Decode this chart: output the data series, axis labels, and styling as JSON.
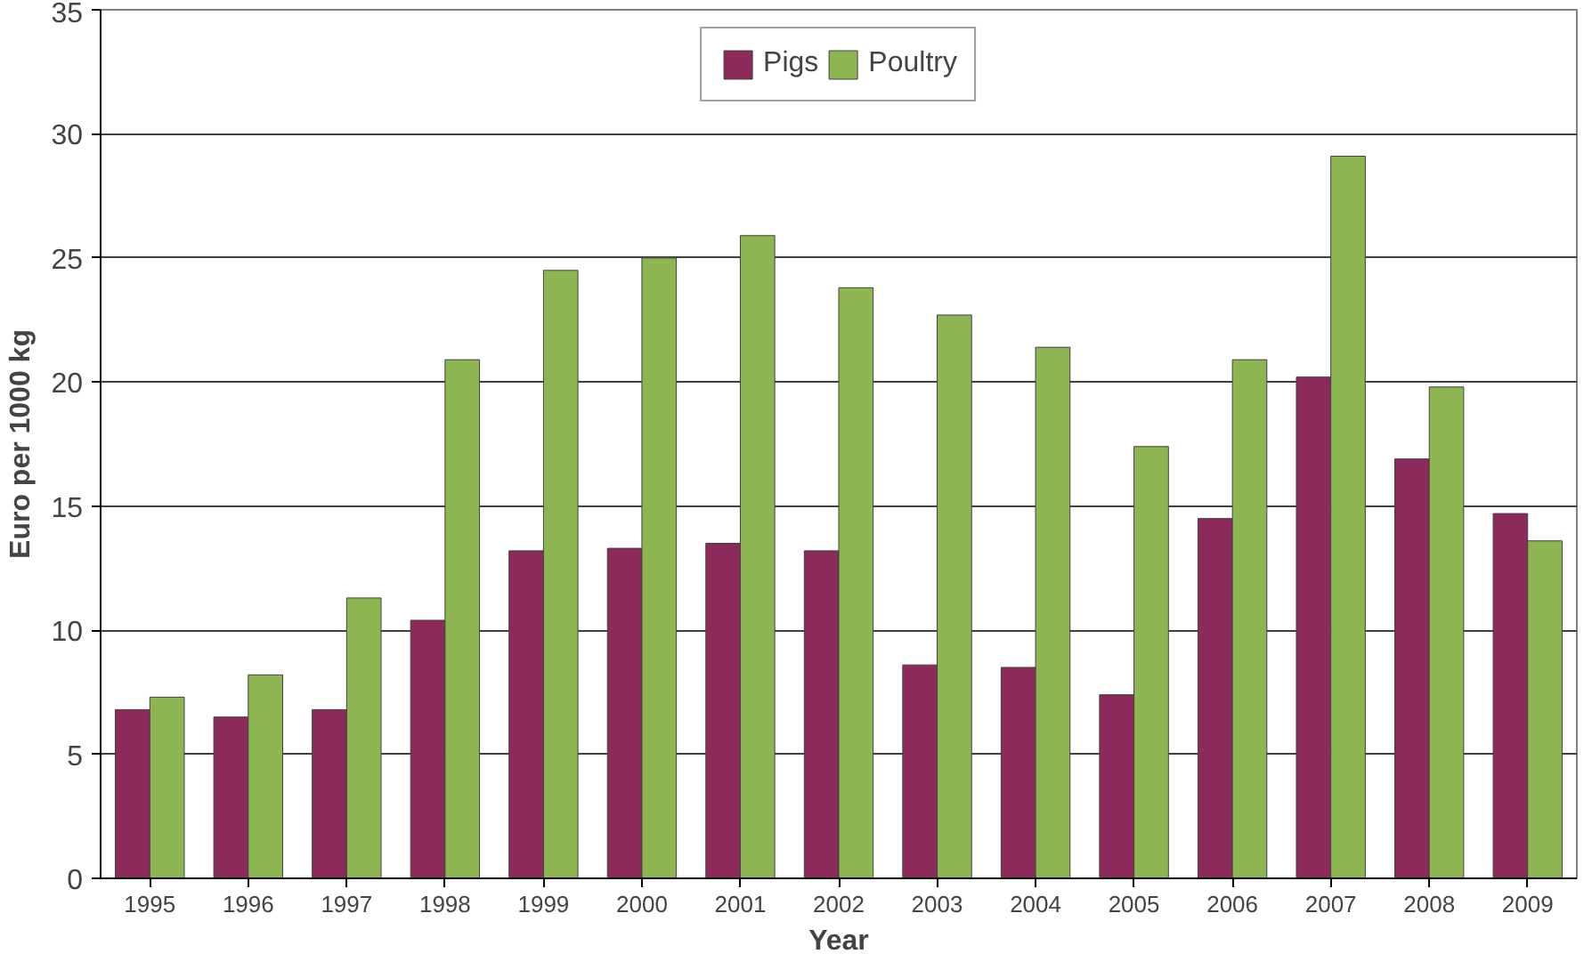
{
  "chart_data": {
    "type": "bar",
    "xlabel": "Year",
    "ylabel": "Euro per 1000 kg",
    "categories": [
      "1995",
      "1996",
      "1997",
      "1998",
      "1999",
      "2000",
      "2001",
      "2002",
      "2003",
      "2004",
      "2005",
      "2006",
      "2007",
      "2008",
      "2009"
    ],
    "series": [
      {
        "name": "Pigs",
        "color": "#8b2a5b",
        "values": [
          6.8,
          6.5,
          6.8,
          10.4,
          13.2,
          13.3,
          13.5,
          13.2,
          8.6,
          8.5,
          7.4,
          14.5,
          20.2,
          16.9,
          14.7
        ]
      },
      {
        "name": "Poultry",
        "color": "#8db652",
        "values": [
          7.3,
          8.2,
          11.3,
          20.9,
          24.5,
          25.0,
          25.9,
          23.8,
          22.7,
          21.4,
          17.4,
          20.9,
          29.1,
          19.8,
          13.6
        ]
      }
    ],
    "ylim": [
      0,
      35
    ],
    "yticks": [
      0,
      5,
      10,
      15,
      20,
      25,
      30,
      35
    ],
    "grid": "y",
    "legend": "top"
  }
}
